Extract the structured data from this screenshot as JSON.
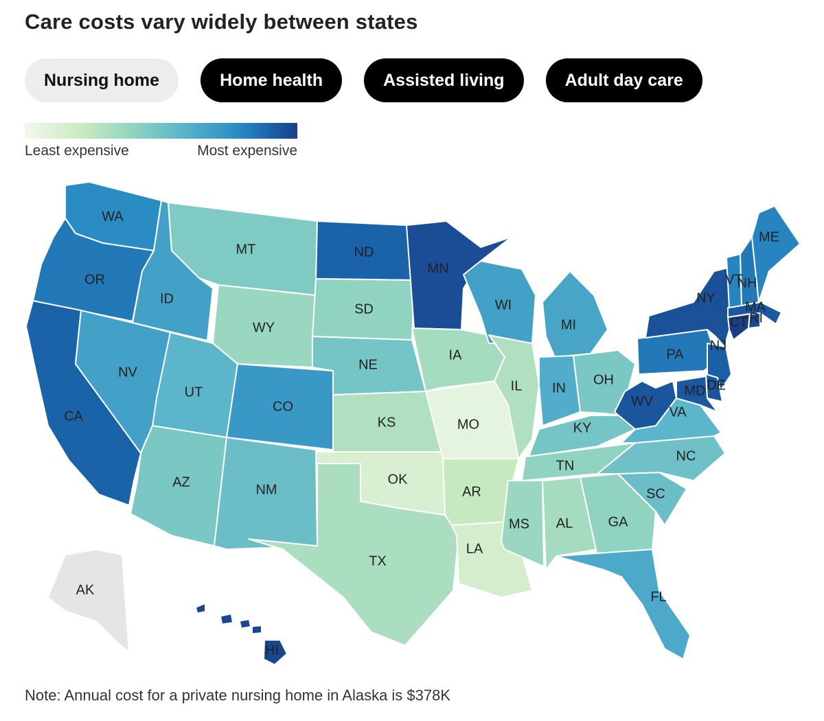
{
  "title": "Care costs vary widely between states",
  "tabs": [
    {
      "label": "Nursing home",
      "active": true
    },
    {
      "label": "Home health",
      "active": false
    },
    {
      "label": "Assisted living",
      "active": false
    },
    {
      "label": "Adult day care",
      "active": false
    }
  ],
  "legend": {
    "low_label": "Least expensive",
    "high_label": "Most expensive",
    "colors": [
      "#f1f9ec",
      "#c7e9c0",
      "#8fd3c0",
      "#5bb5cb",
      "#2b8cc4",
      "#1b63a9",
      "#1a3f87"
    ]
  },
  "map": {
    "no_data_color": "#e5e5e5",
    "states": [
      {
        "abbr": "WA",
        "level": 4
      },
      {
        "abbr": "OR",
        "level": 4.5
      },
      {
        "abbr": "CA",
        "level": 5
      },
      {
        "abbr": "ID",
        "level": 3.5
      },
      {
        "abbr": "NV",
        "level": 3.5
      },
      {
        "abbr": "MT",
        "level": 2.3
      },
      {
        "abbr": "WY",
        "level": 1.8
      },
      {
        "abbr": "UT",
        "level": 3
      },
      {
        "abbr": "CO",
        "level": 3.7
      },
      {
        "abbr": "AZ",
        "level": 2.4
      },
      {
        "abbr": "NM",
        "level": 2.7
      },
      {
        "abbr": "ND",
        "level": 5
      },
      {
        "abbr": "SD",
        "level": 2
      },
      {
        "abbr": "NE",
        "level": 2.5
      },
      {
        "abbr": "KS",
        "level": 1.4
      },
      {
        "abbr": "OK",
        "level": 0.6
      },
      {
        "abbr": "TX",
        "level": 1.5
      },
      {
        "abbr": "MN",
        "level": 5.6
      },
      {
        "abbr": "IA",
        "level": 1.6
      },
      {
        "abbr": "MO",
        "level": 0.3
      },
      {
        "abbr": "AR",
        "level": 1
      },
      {
        "abbr": "LA",
        "level": 0.7
      },
      {
        "abbr": "WI",
        "level": 3.5
      },
      {
        "abbr": "IL",
        "level": 1.4
      },
      {
        "abbr": "MI",
        "level": 3.4
      },
      {
        "abbr": "IN",
        "level": 3.2
      },
      {
        "abbr": "OH",
        "level": 2.4
      },
      {
        "abbr": "KY",
        "level": 2.5
      },
      {
        "abbr": "TN",
        "level": 2
      },
      {
        "abbr": "MS",
        "level": 1.8
      },
      {
        "abbr": "AL",
        "level": 1.6
      },
      {
        "abbr": "GA",
        "level": 2
      },
      {
        "abbr": "FL",
        "level": 3.3
      },
      {
        "abbr": "SC",
        "level": 2.7
      },
      {
        "abbr": "NC",
        "level": 2.6
      },
      {
        "abbr": "VA",
        "level": 3
      },
      {
        "abbr": "WV",
        "level": 5.4
      },
      {
        "abbr": "PA",
        "level": 4.5
      },
      {
        "abbr": "NY",
        "level": 5.5
      },
      {
        "abbr": "NJ",
        "level": 5.1
      },
      {
        "abbr": "DE",
        "level": 5.4
      },
      {
        "abbr": "MD",
        "level": 5.3
      },
      {
        "abbr": "CT",
        "level": 6.3
      },
      {
        "abbr": "RI",
        "level": 5.7
      },
      {
        "abbr": "MA",
        "level": 5.3
      },
      {
        "abbr": "VT",
        "level": 4.2
      },
      {
        "abbr": "NH",
        "level": 4.5
      },
      {
        "abbr": "ME",
        "level": 4.2
      },
      {
        "abbr": "HI",
        "level": 5.8
      },
      {
        "abbr": "AK",
        "level": null
      }
    ]
  },
  "note": "Note: Annual cost for a private nursing home in Alaska is $378K"
}
